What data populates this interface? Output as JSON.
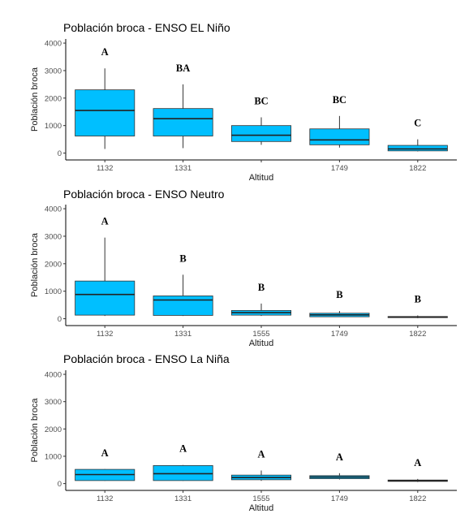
{
  "chart_data": [
    {
      "type": "boxplot",
      "title": "Población broca - ENSO EL Niño",
      "xlabel": "Altitud",
      "ylabel": "Población broca",
      "ylim": [
        -250,
        4150
      ],
      "yticks": [
        0,
        1000,
        2000,
        3000,
        4000
      ],
      "fill": "#00BFFF",
      "grid": false,
      "categories": [
        "1132",
        "1331",
        "1749",
        "1822"
      ],
      "boxes": [
        {
          "category": "1132",
          "whisker_low": 150,
          "q1": 620,
          "median": 1550,
          "q3": 2300,
          "whisker_high": 3080,
          "label": "A"
        },
        {
          "category": "1331",
          "whisker_low": 180,
          "q1": 620,
          "median": 1250,
          "q3": 1620,
          "whisker_high": 2500,
          "label": "BA"
        },
        {
          "category": "",
          "whisker_low": 300,
          "q1": 420,
          "median": 650,
          "q3": 1000,
          "whisker_high": 1300,
          "label": "BC"
        },
        {
          "category": "1749",
          "whisker_low": 200,
          "q1": 300,
          "median": 480,
          "q3": 880,
          "whisker_high": 1350,
          "label": "BC"
        },
        {
          "category": "1822",
          "whisker_low": 60,
          "q1": 80,
          "median": 150,
          "q3": 280,
          "whisker_high": 500,
          "label": "C"
        }
      ]
    },
    {
      "type": "boxplot",
      "title": "Población broca - ENSO Neutro",
      "xlabel": "Altitud",
      "ylabel": "Población broca",
      "ylim": [
        -250,
        4150
      ],
      "yticks": [
        0,
        1000,
        2000,
        3000,
        4000
      ],
      "fill": "#00BFFF",
      "grid": false,
      "categories": [
        "1132",
        "1331",
        "1555",
        "1749",
        "1822"
      ],
      "boxes": [
        {
          "category": "1132",
          "whisker_low": 100,
          "q1": 130,
          "median": 880,
          "q3": 1370,
          "whisker_high": 2950,
          "label": "A"
        },
        {
          "category": "1331",
          "whisker_low": 100,
          "q1": 120,
          "median": 680,
          "q3": 830,
          "whisker_high": 1600,
          "label": "B"
        },
        {
          "category": "1555",
          "whisker_low": 100,
          "q1": 130,
          "median": 220,
          "q3": 300,
          "whisker_high": 550,
          "label": "B"
        },
        {
          "category": "1749",
          "whisker_low": 60,
          "q1": 70,
          "median": 140,
          "q3": 200,
          "whisker_high": 280,
          "label": "B"
        },
        {
          "category": "1822",
          "whisker_low": 20,
          "q1": 40,
          "median": 60,
          "q3": 80,
          "whisker_high": 120,
          "label": "B"
        }
      ]
    },
    {
      "type": "boxplot",
      "title": "Población broca - ENSO La Niña",
      "xlabel": "Altitud",
      "ylabel": "Población broca",
      "ylim": [
        -250,
        4150
      ],
      "yticks": [
        0,
        1000,
        2000,
        3000,
        4000
      ],
      "fill": "#00BFFF",
      "grid": false,
      "categories": [
        "1132",
        "1331",
        "1555",
        "1749",
        "1822"
      ],
      "boxes": [
        {
          "category": "1132",
          "whisker_low": 100,
          "q1": 110,
          "median": 330,
          "q3": 520,
          "whisker_high": 530,
          "label": "A"
        },
        {
          "category": "1331",
          "whisker_low": 100,
          "q1": 110,
          "median": 360,
          "q3": 660,
          "whisker_high": 680,
          "label": "A"
        },
        {
          "category": "1555",
          "whisker_low": 100,
          "q1": 140,
          "median": 220,
          "q3": 310,
          "whisker_high": 480,
          "label": "A"
        },
        {
          "category": "1749",
          "whisker_low": 150,
          "q1": 180,
          "median": 240,
          "q3": 290,
          "whisker_high": 380,
          "label": "A"
        },
        {
          "category": "1822",
          "whisker_low": 60,
          "q1": 80,
          "median": 100,
          "q3": 130,
          "whisker_high": 170,
          "label": "A"
        }
      ]
    }
  ]
}
